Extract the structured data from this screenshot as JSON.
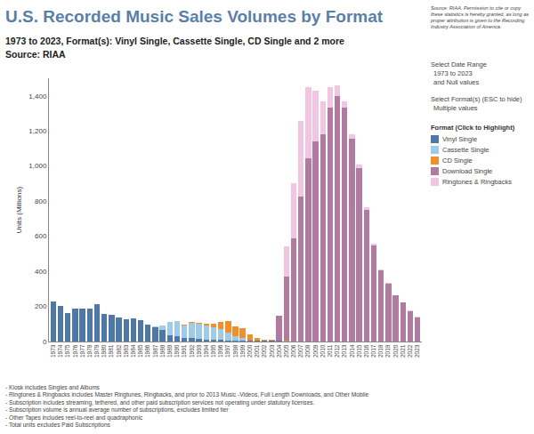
{
  "chart_data": {
    "type": "bar",
    "stacked": true,
    "title": "U.S. Recorded Music Sales Volumes by Format",
    "subtitle": "1973 to 2023, Format(s): Vinyl Single, Cassette Single, CD Single and 2 more",
    "source": "Source: RIAA",
    "note": "Source: RIAA. Permission to cite or copy these statistics is hereby granted, as long as proper attribution is given to the Recording Industry Association of America.",
    "controls": [
      "Select Date Range",
      "1973 to 2023",
      "and Null values",
      "Select Format(s) (ESC to hide)",
      "Multiple values"
    ],
    "legend_title": "Format (Click to Highlight)",
    "legend": "right",
    "y_label": "Units (Millions)",
    "grid": false,
    "ylim": [
      0,
      1500
    ],
    "yticks": [
      0,
      200,
      400,
      600,
      800,
      {
        "value": 1000,
        "label": "1,000"
      },
      {
        "value": 1200,
        "label": "1,200"
      },
      {
        "value": 1400,
        "label": "1,400"
      }
    ],
    "categories": [
      "1973",
      "1974",
      "1975",
      "1976",
      "1977",
      "1978",
      "1979",
      "1980",
      "1981",
      "1982",
      "1983",
      "1984",
      "1985",
      "1986",
      "1987",
      "1988",
      "1989",
      "1990",
      "1991",
      "1992",
      "1993",
      "1994",
      "1995",
      "1996",
      "1997",
      "1998",
      "1999",
      "2000",
      "2001",
      "2002",
      "2003",
      "2004",
      "2005",
      "2006",
      "2007",
      "2008",
      "2009",
      "2010",
      "2011",
      "2012",
      "2013",
      "2014",
      "2015",
      "2016",
      "2017",
      "2018",
      "2019",
      "2020",
      "2021",
      "2022",
      "2023"
    ],
    "series": [
      {
        "name": "Vinyl Single",
        "color": "#4e79a7",
        "values": [
          228,
          204,
          164,
          190,
          190,
          190,
          212,
          157,
          154,
          137,
          125,
          131,
          121,
          94,
          83,
          66,
          36,
          28,
          22,
          20,
          15,
          12,
          10,
          10,
          7,
          5,
          5,
          5,
          5,
          4,
          4,
          4,
          2,
          null,
          null,
          null,
          null,
          null,
          null,
          null,
          null,
          null,
          null,
          null,
          null,
          null,
          null,
          null,
          null,
          null,
          null
        ]
      },
      {
        "name": "Cassette Single",
        "color": "#a0cbe8",
        "values": [
          null,
          null,
          null,
          null,
          null,
          null,
          null,
          null,
          null,
          null,
          null,
          null,
          null,
          null,
          5,
          23,
          76,
          87,
          70,
          85,
          85,
          81,
          70,
          59,
          42,
          26,
          14,
          1,
          null,
          null,
          null,
          null,
          null,
          null,
          null,
          null,
          null,
          null,
          null,
          null,
          null,
          null,
          null,
          null,
          null,
          null,
          null,
          null,
          null,
          null,
          null
        ]
      },
      {
        "name": "CD Single",
        "color": "#f28e2b",
        "values": [
          null,
          null,
          null,
          null,
          null,
          null,
          null,
          null,
          null,
          null,
          null,
          null,
          null,
          null,
          null,
          2,
          0,
          1,
          5,
          7,
          7,
          9,
          22,
          43,
          66,
          56,
          56,
          34,
          17,
          4,
          8,
          3,
          3,
          2,
          1,
          null,
          null,
          null,
          null,
          null,
          null,
          null,
          null,
          null,
          null,
          null,
          null,
          null,
          null,
          null,
          null
        ]
      },
      {
        "name": "Download Single",
        "color": "#b07aa1",
        "values": [
          null,
          null,
          null,
          null,
          null,
          null,
          null,
          null,
          null,
          null,
          null,
          null,
          null,
          null,
          null,
          null,
          null,
          null,
          null,
          null,
          null,
          null,
          null,
          null,
          null,
          null,
          null,
          null,
          null,
          null,
          null,
          140,
          366,
          586,
          824,
          1043,
          1138,
          1183,
          1332,
          1398,
          1335,
          1155,
          990,
          750,
          545,
          404,
          331,
          262,
          223,
          173,
          139
        ]
      },
      {
        "name": "Ringtones & Ringbacks",
        "color": "#f0c6e2",
        "values": [
          null,
          null,
          null,
          null,
          null,
          null,
          null,
          null,
          null,
          null,
          null,
          null,
          null,
          null,
          null,
          null,
          null,
          null,
          null,
          null,
          null,
          null,
          null,
          null,
          null,
          null,
          null,
          null,
          null,
          null,
          null,
          null,
          170,
          315,
          434,
          405,
          290,
          185,
          115,
          60,
          35,
          25,
          20,
          15,
          10,
          6,
          4,
          3,
          2,
          2,
          1
        ]
      }
    ],
    "footnotes": [
      "- Kiosk includes Singles and Albums",
      "- Ringtones & Ringbacks includes Master Ringtunes, Ringbacks, and prior to 2013 Music -Videos, Full Length Downloads, and Other Mobile",
      "- Subscription includes streaming, tethered, and other paid subscription services not operating under statutory licenses.",
      "- Subscription volume is annual average number of subscriptions, excludes limited tier",
      "- Other Tapes includes reel-to-reel and quadraphonic",
      "- Total units excludes Paid Subscriptions"
    ]
  }
}
